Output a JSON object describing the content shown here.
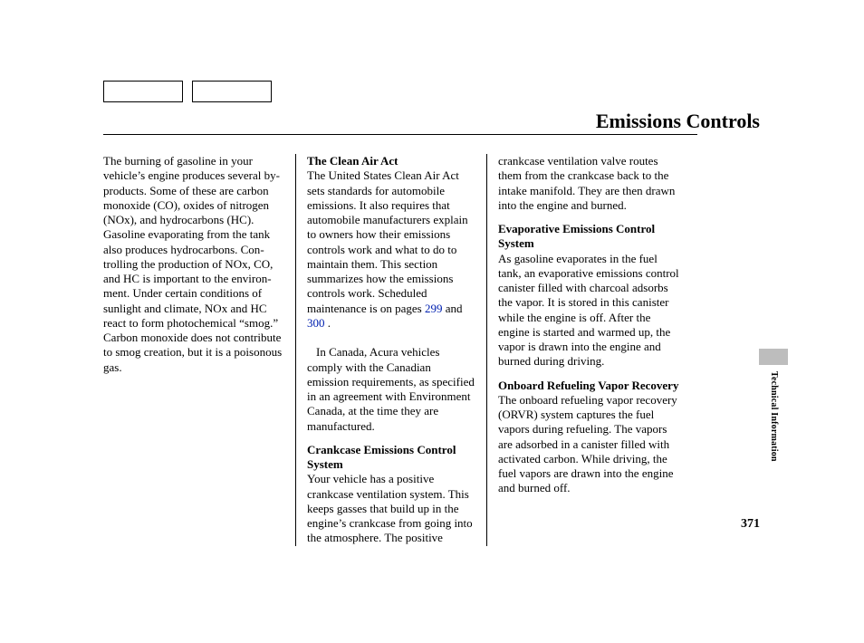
{
  "title": "Emissions Controls",
  "side_label": "Technical Information",
  "page_number": "371",
  "col1": {
    "p1": "The burning of gasoline in your vehicle’s engine produces several by-products. Some of these are carbon monoxide (CO), oxides of nitrogen (NOx), and hydrocarbons (HC). Gasoline evaporating from the tank also produces hydrocarbons. Con­trolling the production of NOx, CO, and HC is important to the environ­ment. Under certain conditions of sunlight and climate, NOx and HC react to form photochemical “smog.” Carbon monoxide does not contri­bute to smog creation, but it is a poisonous gas."
  },
  "col2": {
    "h1": "The Clean Air Act",
    "p1a": "The United States Clean Air Act sets standards for automobile emissions. It also requires that automobile manufacturers explain to owners how their emissions controls work and what to do to maintain them. This section summarizes how the emissions controls work. Scheduled maintenance is on pages ",
    "link1": "299",
    "mid": " and ",
    "link2": "300",
    "end": " .",
    "p2": "In Canada, Acura vehicles comply with the Canadian emission requirements, as specified in an agreement with Environment Canada, at the time they are manufactured.",
    "h2": "Crankcase Emissions Control System",
    "p3": "Your vehicle has a positive crankcase ventilation system. This keeps gasses that build up in the engine’s crankcase from going into the atmosphere. The positive"
  },
  "col3": {
    "p1": "crankcase ventilation valve routes them from the crankcase back to the intake manifold. They are then drawn into the engine and burned.",
    "h1": "Evaporative Emissions Control System",
    "p2": "As gasoline evaporates in the fuel tank, an evaporative emissions control canister filled with charcoal adsorbs the vapor. It is stored in this canister while the engine is off. After the engine is started and warmed up, the vapor is drawn into the engine and burned during driving.",
    "h2": "Onboard Refueling Vapor Recovery",
    "p3": "The onboard refueling vapor recovery (ORVR) system captures the fuel vapors during refueling. The vapors are adsorbed in a canister filled with activated carbon. While driving, the fuel vapors are drawn into the engine and burned off."
  }
}
